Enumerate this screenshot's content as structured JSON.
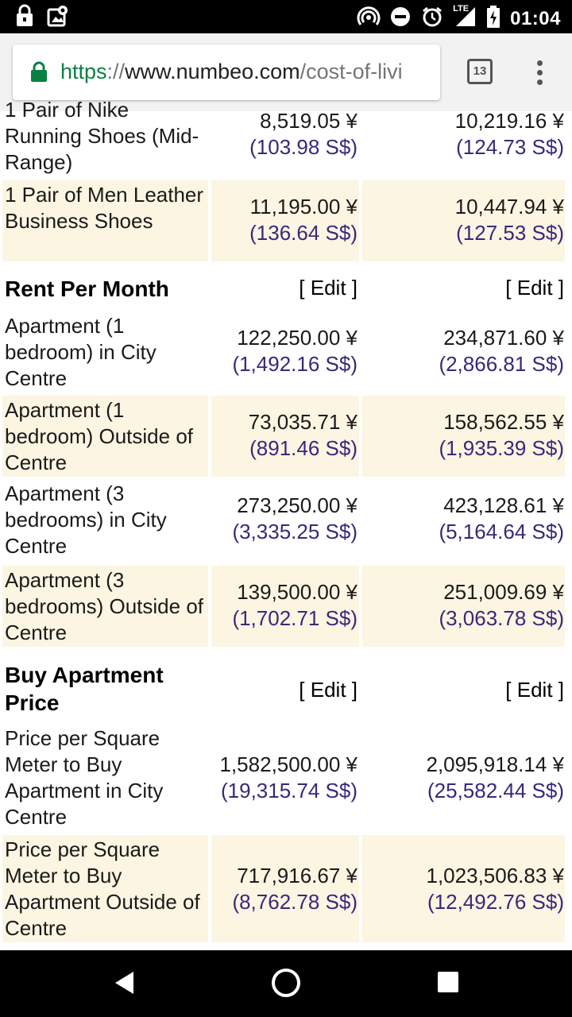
{
  "status_bar": {
    "time": "01:04",
    "left_icons": [
      "lock-icon",
      "photo-icon"
    ],
    "right_icons": [
      "hotspot-icon",
      "do-not-disturb-icon",
      "alarm-icon",
      "lte-signal-icon",
      "battery-charging-icon"
    ],
    "network_label": "LTE"
  },
  "browser": {
    "url_scheme": "https",
    "url_separator": "://",
    "url_host": "www.numbeo.com",
    "url_path": "/cost-of-livi",
    "tab_count": "13"
  },
  "rows": [
    {
      "label": "1 Pair of Nike Running Shoes (Mid-Range)",
      "city1_yen": "8,519.05 ¥",
      "city1_sgd": "(103.98 S$)",
      "city2_yen": "10,219.16 ¥",
      "city2_sgd": "(124.73 S$)",
      "shaded": false
    },
    {
      "label": "1 Pair of Men Leather Business Shoes",
      "city1_yen": "11,195.00 ¥",
      "city1_sgd": "(136.64 S$)",
      "city2_yen": "10,447.94 ¥",
      "city2_sgd": "(127.53 S$)",
      "shaded": true
    }
  ],
  "sections": [
    {
      "title": "Rent Per Month",
      "edit_label": "[ Edit ]",
      "rows": [
        {
          "label": "Apartment (1 bedroom) in City Centre",
          "city1_yen": "122,250.00 ¥",
          "city1_sgd": "(1,492.16 S$)",
          "city2_yen": "234,871.60 ¥",
          "city2_sgd": "(2,866.81 S$)",
          "shaded": false
        },
        {
          "label": "Apartment (1 bedroom) Outside of Centre",
          "city1_yen": "73,035.71 ¥",
          "city1_sgd": "(891.46 S$)",
          "city2_yen": "158,562.55 ¥",
          "city2_sgd": "(1,935.39 S$)",
          "shaded": true
        },
        {
          "label": "Apartment (3 bedrooms) in City Centre",
          "city1_yen": "273,250.00 ¥",
          "city1_sgd": "(3,335.25 S$)",
          "city2_yen": "423,128.61 ¥",
          "city2_sgd": "(5,164.64 S$)",
          "shaded": false
        },
        {
          "label": "Apartment (3 bedrooms) Outside of Centre",
          "city1_yen": "139,500.00 ¥",
          "city1_sgd": "(1,702.71 S$)",
          "city2_yen": "251,009.69 ¥",
          "city2_sgd": "(3,063.78 S$)",
          "shaded": true
        }
      ]
    },
    {
      "title": "Buy Apartment Price",
      "edit_label": "[ Edit ]",
      "rows": [
        {
          "label": "Price per Square Meter to Buy Apartment in City Centre",
          "city1_yen": "1,582,500.00 ¥",
          "city1_sgd": "(19,315.74 S$)",
          "city2_yen": "2,095,918.14 ¥",
          "city2_sgd": "(25,582.44 S$)",
          "shaded": false
        },
        {
          "label": "Price per Square Meter to Buy Apartment Outside of Centre",
          "city1_yen": "717,916.67 ¥",
          "city1_sgd": "(8,762.78 S$)",
          "city2_yen": "1,023,506.83 ¥",
          "city2_sgd": "(12,492.76 S$)",
          "shaded": true
        }
      ]
    }
  ],
  "nav_bar": {
    "icons": [
      "back-icon",
      "home-icon",
      "recents-icon"
    ]
  },
  "colors": {
    "row_shade": "#fcf5e2",
    "edit_link": "#2b20a4",
    "sgd_text": "#39287b",
    "url_secure": "#0b8043"
  }
}
